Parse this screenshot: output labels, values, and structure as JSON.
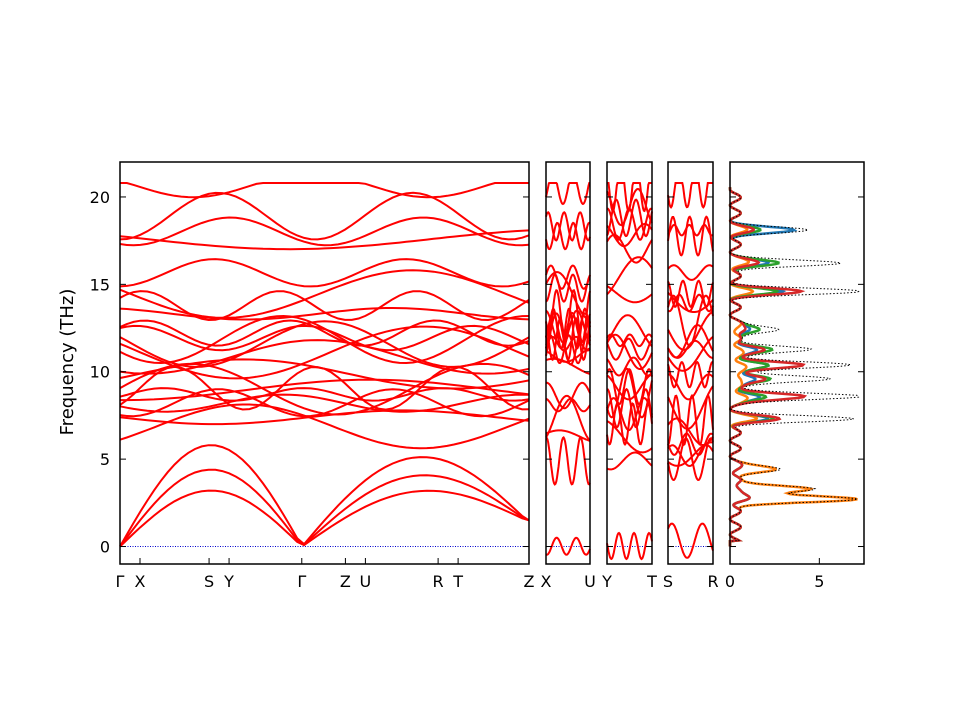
{
  "chart_data": {
    "type": "line",
    "ylabel": "Frequency (THz)",
    "ylim": [
      -1,
      22
    ],
    "yticks": [
      "0",
      "5",
      "10",
      "15",
      "20"
    ],
    "colors": {
      "bands": "#ff0000",
      "zero_line": "#0000cc",
      "dos_total": "#000000",
      "dos_series": [
        "#1f77b4",
        "#ff7f0e",
        "#2ca02c",
        "#d62728",
        "#9467bd"
      ]
    },
    "band_segments": [
      {
        "labels": [
          "Γ",
          "X",
          "",
          "S",
          "Y",
          "",
          "Γ",
          "",
          "Z",
          "U",
          "",
          "R",
          "T",
          "",
          "Z"
        ],
        "label_pos": [
          0,
          0.11,
          0,
          0.49,
          0.6,
          0,
          1.0,
          0,
          1.24,
          1.35,
          0,
          1.75,
          1.86,
          0,
          2.25
        ]
      },
      {
        "labels": [
          "X",
          "U"
        ]
      },
      {
        "labels": [
          "Y",
          "T"
        ]
      },
      {
        "labels": [
          "S",
          "R"
        ]
      }
    ],
    "band_frequencies_at_gamma_branch_starts": [
      0,
      4.5,
      6.2,
      7.0,
      7.8,
      8.6,
      9.8,
      10.6,
      11.0,
      11.6,
      12.0,
      14.3,
      15.3,
      17.5,
      18.0,
      20.1
    ],
    "dos": {
      "xlim": [
        0,
        7.5
      ],
      "xticks": [
        "0",
        "5"
      ],
      "total_peaks": [
        {
          "freq": 2.7,
          "value": 6.8
        },
        {
          "freq": 3.3,
          "value": 4.7
        },
        {
          "freq": 4.4,
          "value": 2.7
        },
        {
          "freq": 7.3,
          "value": 6.4
        },
        {
          "freq": 8.6,
          "value": 7.3
        },
        {
          "freq": 9.6,
          "value": 5.6
        },
        {
          "freq": 10.4,
          "value": 6.6
        },
        {
          "freq": 11.3,
          "value": 4.4
        },
        {
          "freq": 12.4,
          "value": 2.7
        },
        {
          "freq": 14.6,
          "value": 6.8
        },
        {
          "freq": 16.2,
          "value": 5.8
        },
        {
          "freq": 18.1,
          "value": 3.8
        }
      ]
    }
  }
}
